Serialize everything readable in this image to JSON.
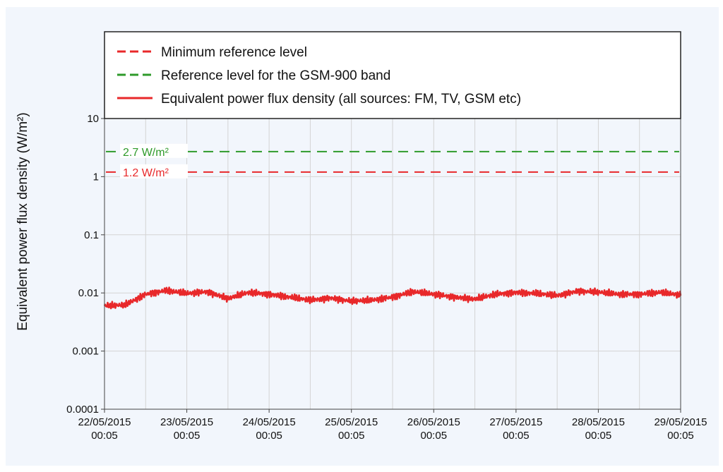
{
  "chart_data": {
    "type": "line",
    "ylabel": "Equivalent power flux density (W/m²)",
    "xlabel": "",
    "title": "",
    "y_scale": "log",
    "ylim": [
      0.0001,
      10
    ],
    "y_ticks": [
      "10",
      "1",
      "0.1",
      "0.01",
      "0.001",
      "0.0001"
    ],
    "y_tick_values": [
      10,
      1,
      0.1,
      0.01,
      0.001,
      0.0001
    ],
    "x_range": [
      "22/05/2015 00:05",
      "29/05/2015 00:05"
    ],
    "x_ticks": [
      {
        "date": "22/05/2015",
        "time": "00:05"
      },
      {
        "date": "23/05/2015",
        "time": "00:05"
      },
      {
        "date": "24/05/2015",
        "time": "00:05"
      },
      {
        "date": "25/05/2015",
        "time": "00:05"
      },
      {
        "date": "26/05/2015",
        "time": "00:05"
      },
      {
        "date": "27/05/2015",
        "time": "00:05"
      },
      {
        "date": "28/05/2015",
        "time": "00:05"
      },
      {
        "date": "29/05/2015",
        "time": "00:05"
      }
    ],
    "grid": true,
    "legend_position": "top",
    "legend": [
      {
        "label": "Minimum reference level",
        "style": "dashed",
        "color": "#e8282a"
      },
      {
        "label": "Reference level for the GSM-900 band",
        "style": "dashed",
        "color": "#2e9a2a"
      },
      {
        "label": "Equivalent power flux density (all sources: FM, TV, GSM etc)",
        "style": "solid",
        "color": "#e8282a"
      }
    ],
    "reference_lines": [
      {
        "name": "Reference level for the GSM-900 band",
        "value": 2.7,
        "label": "2.7 W/m²",
        "color": "#2e9a2a"
      },
      {
        "name": "Minimum reference level",
        "value": 1.2,
        "label": "1.2 W/m²",
        "color": "#e8282a"
      }
    ],
    "series": [
      {
        "name": "Equivalent power flux density (all sources: FM, TV, GSM etc)",
        "color": "#e8282a",
        "x": [
          "22/05/2015 00:05",
          "22/05/2015 06:05",
          "22/05/2015 12:05",
          "22/05/2015 18:05",
          "23/05/2015 00:05",
          "23/05/2015 06:05",
          "23/05/2015 12:05",
          "23/05/2015 18:05",
          "24/05/2015 00:05",
          "24/05/2015 06:05",
          "24/05/2015 12:05",
          "24/05/2015 18:05",
          "25/05/2015 00:05",
          "25/05/2015 06:05",
          "25/05/2015 12:05",
          "25/05/2015 18:05",
          "26/05/2015 00:05",
          "26/05/2015 06:05",
          "26/05/2015 12:05",
          "26/05/2015 18:05",
          "27/05/2015 00:05",
          "27/05/2015 06:05",
          "27/05/2015 12:05",
          "27/05/2015 18:05",
          "28/05/2015 00:05",
          "28/05/2015 06:05",
          "28/05/2015 12:05",
          "28/05/2015 18:05",
          "29/05/2015 00:05"
        ],
        "values": [
          0.006,
          0.0062,
          0.0095,
          0.011,
          0.0098,
          0.0105,
          0.008,
          0.0102,
          0.0095,
          0.0085,
          0.0075,
          0.0082,
          0.0072,
          0.0075,
          0.0085,
          0.0105,
          0.0095,
          0.0085,
          0.0078,
          0.0095,
          0.0102,
          0.0098,
          0.009,
          0.0108,
          0.0103,
          0.0095,
          0.0095,
          0.0102,
          0.0092
        ]
      }
    ]
  }
}
